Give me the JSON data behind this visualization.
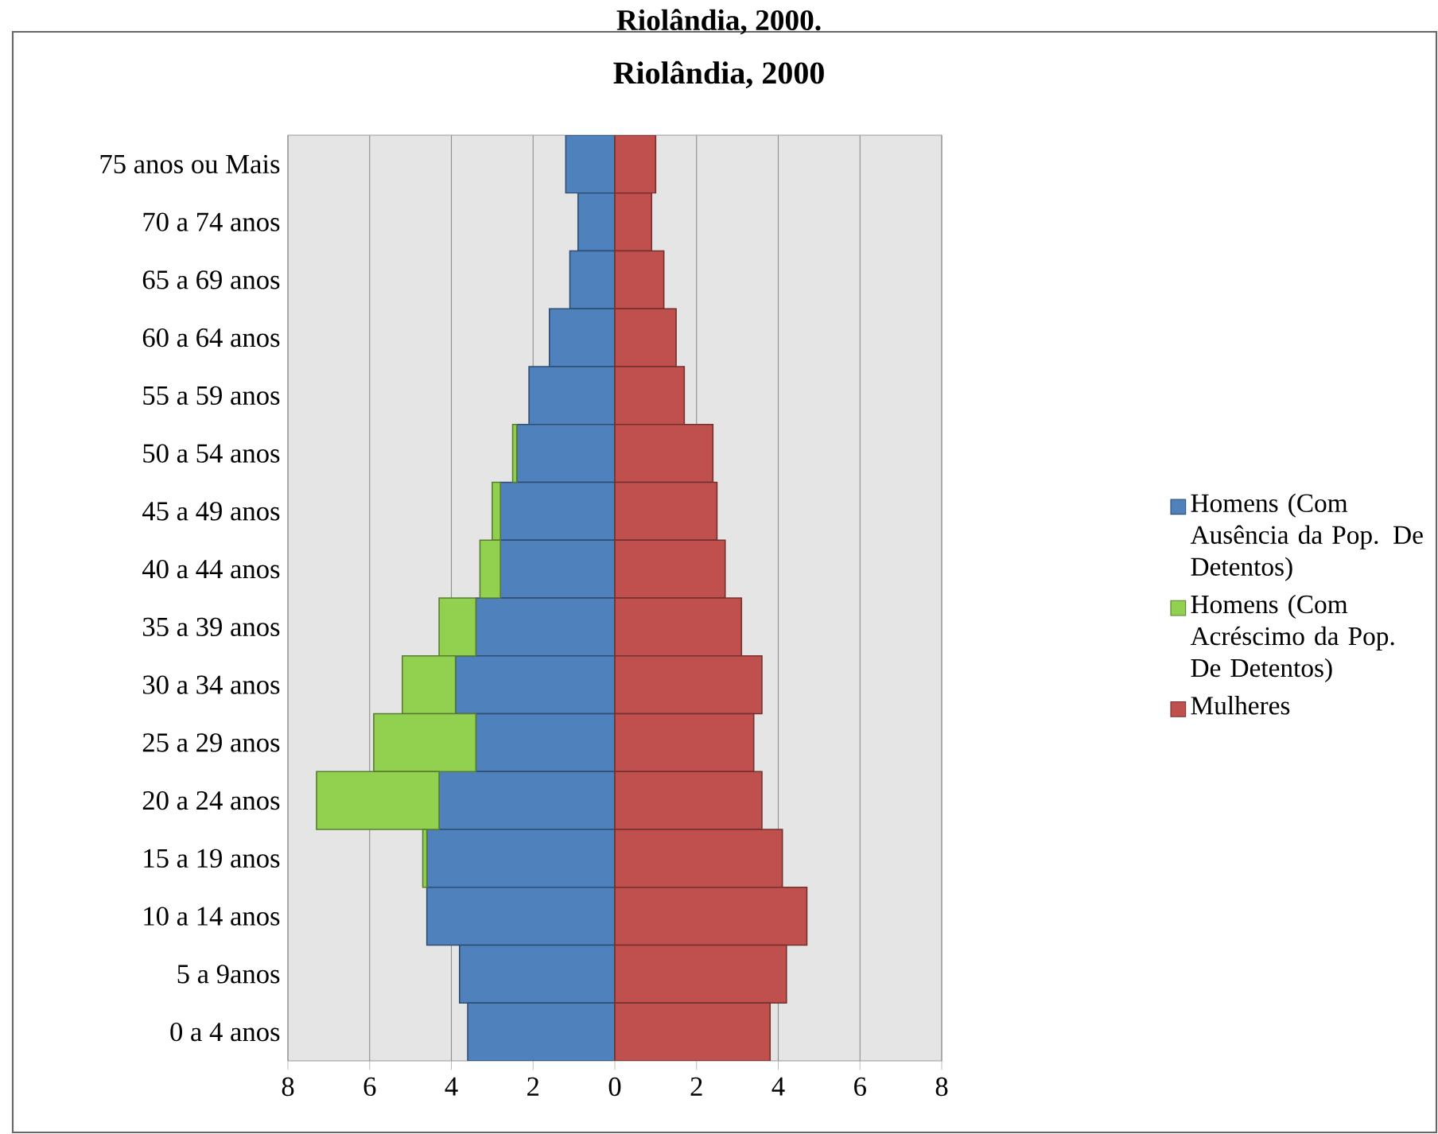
{
  "chart_data": {
    "type": "bar",
    "orientation": "horizontal",
    "stacked": true,
    "title": "Riolândia, 2000",
    "annotations": [
      "Riolândia, 2000."
    ],
    "categories": [
      "75 anos ou Mais",
      "70 a 74 anos",
      "65 a 69 anos",
      "60 a 64 anos",
      "55 a 59 anos",
      "50 a 54 anos",
      "45 a 49 anos",
      "40 a 44 anos",
      "35 a 39 anos",
      "30 a 34 anos",
      "25 a 29 anos",
      "20 a 24 anos",
      "15 a 19 anos",
      "10 a 14 anos",
      "5 a 9anos",
      "0 a 4 anos"
    ],
    "series": [
      {
        "name": "Homens (Com Ausência da Pop. De Detentos)",
        "color": "#4f81bd",
        "values": [
          -1.2,
          -0.9,
          -1.1,
          -1.6,
          -2.1,
          -2.4,
          -2.8,
          -2.8,
          -3.4,
          -3.9,
          -3.4,
          -4.3,
          -4.6,
          -4.6,
          -3.8,
          -3.6
        ]
      },
      {
        "name": "Homens (Com Acréscimo da Pop. De Detentos)",
        "color": "#92d050",
        "values": [
          0,
          0,
          0,
          0,
          0,
          -0.1,
          -0.2,
          -0.5,
          -0.9,
          -1.3,
          -2.5,
          -3.0,
          -0.1,
          0,
          0,
          0
        ]
      },
      {
        "name": "Mulheres",
        "color": "#c0504d",
        "values": [
          1.0,
          0.9,
          1.2,
          1.5,
          1.7,
          2.4,
          2.5,
          2.7,
          3.1,
          3.6,
          3.4,
          3.6,
          4.1,
          4.7,
          4.2,
          3.8
        ]
      }
    ],
    "xlim": [
      -8,
      8
    ],
    "xticks": [
      {
        "value": -8,
        "label": "8"
      },
      {
        "value": -6,
        "label": "6"
      },
      {
        "value": -4,
        "label": "4"
      },
      {
        "value": -2,
        "label": "2"
      },
      0,
      2,
      4,
      6,
      8
    ],
    "grid": "x",
    "legend": "right"
  }
}
